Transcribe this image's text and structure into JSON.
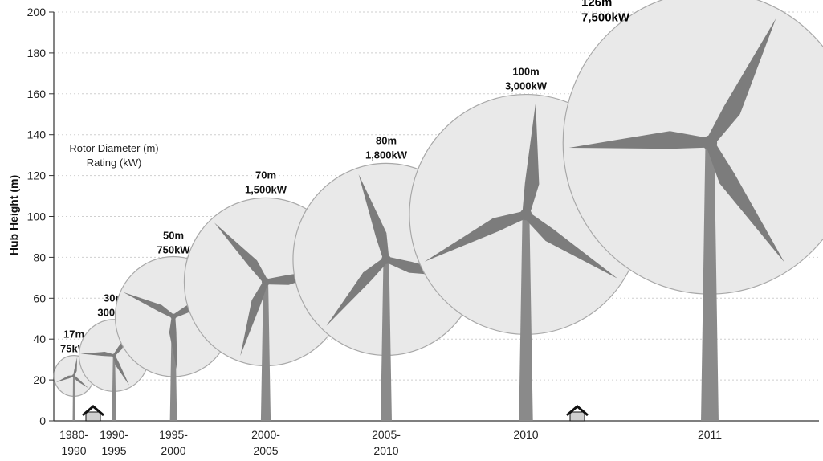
{
  "chart_data": {
    "type": "scatter",
    "title": "",
    "xlabel": "",
    "ylabel": "Hub Height (m)",
    "ylim": [
      0,
      200
    ],
    "yticks": [
      0,
      20,
      40,
      60,
      80,
      100,
      120,
      140,
      160,
      180,
      200
    ],
    "grid": true,
    "annotation_lines": [
      "Rotor Diameter (m)",
      "Rating (kW)"
    ],
    "turbines": [
      {
        "period_line1": "1980-",
        "period_line2": "1990",
        "hub_height": 22,
        "rotor_diameter": "17m",
        "rating": "75kW",
        "rotor_m": 17
      },
      {
        "period_line1": "1990-",
        "period_line2": "1995",
        "hub_height": 32,
        "rotor_diameter": "30m",
        "rating": "300kW",
        "rotor_m": 30
      },
      {
        "period_line1": "1995-",
        "period_line2": "2000",
        "hub_height": 51,
        "rotor_diameter": "50m",
        "rating": "750kW",
        "rotor_m": 50
      },
      {
        "period_line1": "2000-",
        "period_line2": "2005",
        "hub_height": 68,
        "rotor_diameter": "70m",
        "rating": "1,500kW",
        "rotor_m": 70
      },
      {
        "period_line1": "2005-",
        "period_line2": "2010",
        "hub_height": 79,
        "rotor_diameter": "80m",
        "rating": "1,800kW",
        "rotor_m": 80
      },
      {
        "period_line1": "2010",
        "period_line2": "",
        "hub_height": 101,
        "rotor_diameter": "100m",
        "rating": "3,000kW",
        "rotor_m": 100
      },
      {
        "period_line1": "2011",
        "period_line2": "",
        "hub_height": 136,
        "rotor_diameter": "126m",
        "rating": "7,500kW",
        "rotor_m": 126
      }
    ],
    "colors": {
      "tower": "#8a8a8a",
      "blade": "#7c7c7c",
      "rotor_fill": "#e9e9e9",
      "rotor_stroke": "#a8a8a8",
      "grid": "#cfcfcf",
      "axis": "#333333",
      "house": "#111111"
    }
  }
}
